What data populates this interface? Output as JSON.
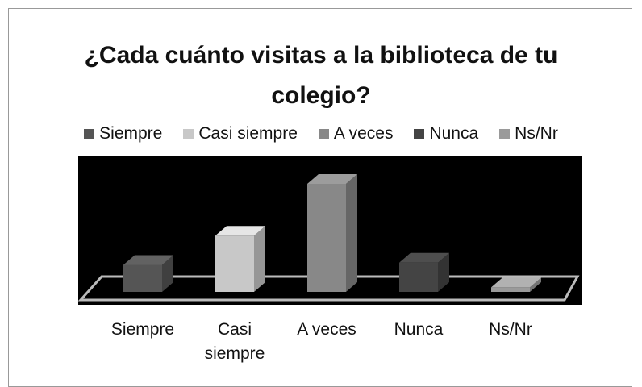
{
  "chart_data": {
    "type": "bar3d",
    "title": "¿Cada cuánto visitas a la biblioteca de tu colegio?",
    "categories": [
      "Siempre",
      "Casi siempre",
      "A veces",
      "Nunca",
      "Ns/Nr"
    ],
    "series": [
      {
        "name": "Siempre",
        "color": "#555555",
        "values": [
          12,
          null,
          null,
          null,
          null
        ]
      },
      {
        "name": "Casi siempre",
        "color": "#c8c8c8",
        "values": [
          null,
          25,
          null,
          null,
          null
        ]
      },
      {
        "name": "A veces",
        "color": "#888888",
        "values": [
          null,
          null,
          48,
          null,
          null
        ]
      },
      {
        "name": "Nunca",
        "color": "#444444",
        "values": [
          null,
          null,
          null,
          13,
          null
        ]
      },
      {
        "name": "Ns/Nr",
        "color": "#9a9a9a",
        "values": [
          null,
          null,
          null,
          null,
          2
        ]
      }
    ],
    "legend": "top"
  }
}
